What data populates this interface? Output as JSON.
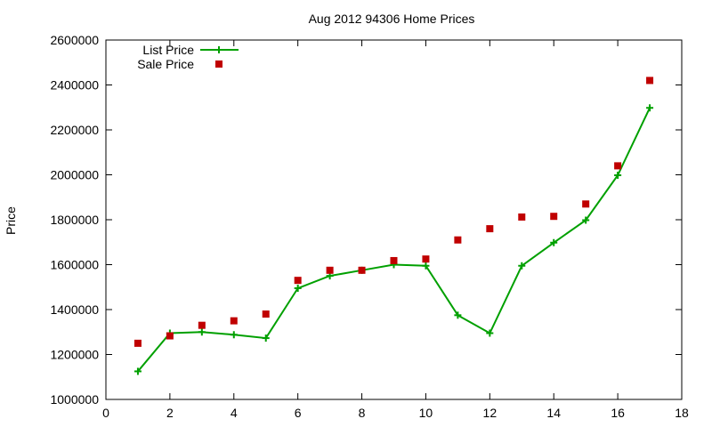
{
  "chart_data": {
    "type": "line",
    "title": "Aug 2012 94306 Home Prices",
    "xlabel": "",
    "ylabel": "Price",
    "xlim": [
      0,
      18
    ],
    "ylim": [
      1000000,
      2600000
    ],
    "xticks": [
      0,
      2,
      4,
      6,
      8,
      10,
      12,
      14,
      16,
      18
    ],
    "yticks": [
      1000000,
      1200000,
      1400000,
      1600000,
      1800000,
      2000000,
      2200000,
      2400000,
      2600000
    ],
    "grid": false,
    "legend_position": "top-left",
    "x": [
      1,
      2,
      3,
      4,
      5,
      6,
      7,
      8,
      9,
      10,
      11,
      12,
      13,
      14,
      15,
      16,
      17
    ],
    "series": [
      {
        "name": "List Price",
        "style": "line-with-plus-markers",
        "color": "#00a000",
        "values": [
          1125000,
          1295000,
          1300000,
          1288000,
          1273000,
          1495000,
          1550000,
          1575000,
          1600000,
          1595000,
          1375000,
          1295000,
          1595000,
          1698000,
          1798000,
          1998000,
          2298000
        ]
      },
      {
        "name": "Sale Price",
        "style": "square-markers",
        "color": "#c00000",
        "values": [
          1250000,
          1283000,
          1330000,
          1350000,
          1380000,
          1530000,
          1575000,
          1575000,
          1618000,
          1625000,
          1710000,
          1760000,
          1812000,
          1815000,
          1870000,
          2040000,
          2420000
        ]
      }
    ]
  }
}
